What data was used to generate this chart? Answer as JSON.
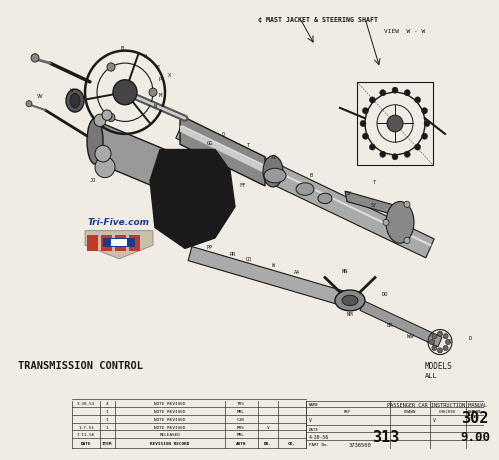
{
  "bg_color": "#e8e4dc",
  "image_bg": "#f0ece4",
  "text_color": "#111111",
  "table_border": "#333333",
  "logo_red": "#c0392b",
  "logo_blue": "#1a3a8c",
  "logo_gold": "#c8a020",
  "bottom_label": "TRANSMISSION CONTROL",
  "models_label": "MODELS",
  "models_sub": "ALL",
  "main_label_top": "¢ MAST JACKET & STEERING SHAFT",
  "view_label": "VIEW  W - W",
  "trifive_text": "Tri-Five.com",
  "name_value": "PASSENGER CAR INSTRUCTION MANUAL",
  "fpo_value": "302",
  "sheet_value": "9.00",
  "date_value": "4-30-56",
  "partno_value": "3736500",
  "partno2_value": "313"
}
